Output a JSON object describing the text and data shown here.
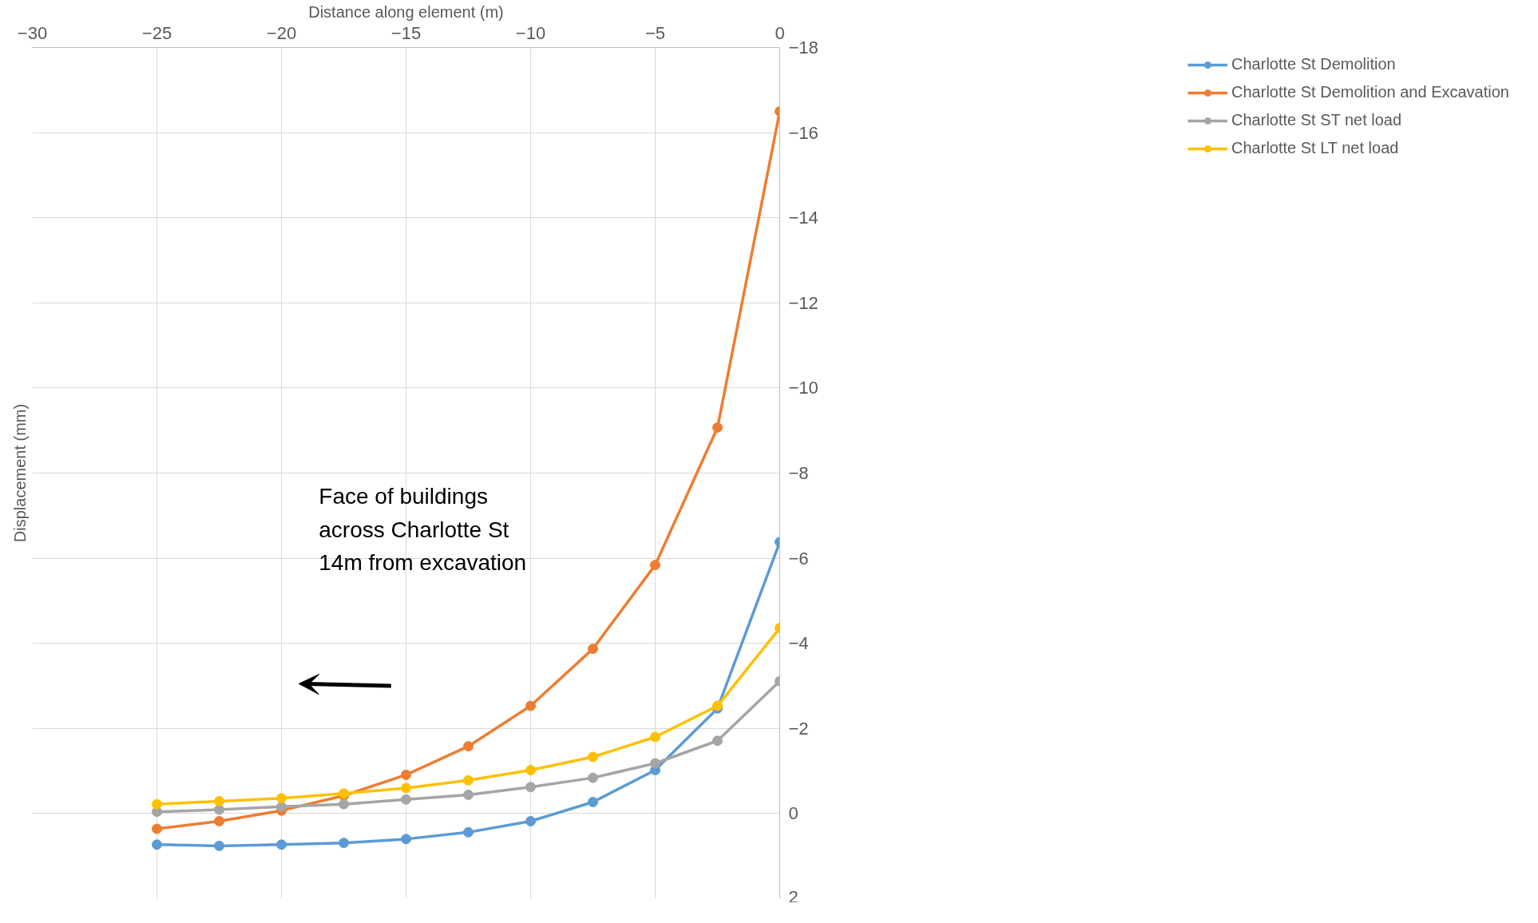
{
  "chart_data": {
    "type": "line",
    "xlabel": "Distance along element (m)",
    "ylabel": "Displacement (mm)",
    "x": [
      -25,
      -22.5,
      -20,
      -17.5,
      -15,
      -12.5,
      -10,
      -7.5,
      -5,
      -2.5,
      0
    ],
    "series": [
      {
        "name": "Charlotte St Demolition",
        "color": "#5b9bd5",
        "values": [
          0.73,
          0.76,
          0.73,
          0.69,
          0.6,
          0.44,
          0.18,
          -0.27,
          -1.02,
          -2.47,
          -6.38
        ]
      },
      {
        "name": "Charlotte St Demolition and Excavation",
        "color": "#ed7d31",
        "values": [
          0.36,
          0.18,
          -0.07,
          -0.42,
          -0.91,
          -1.58,
          -2.53,
          -3.87,
          -5.84,
          -9.07,
          -16.5
        ]
      },
      {
        "name": "Charlotte St ST net load",
        "color": "#a5a5a5",
        "values": [
          -0.04,
          -0.09,
          -0.16,
          -0.22,
          -0.33,
          -0.44,
          -0.62,
          -0.84,
          -1.18,
          -1.71,
          -3.11
        ]
      },
      {
        "name": "Charlotte St LT net load",
        "color": "#ffc000",
        "values": [
          -0.22,
          -0.29,
          -0.36,
          -0.47,
          -0.6,
          -0.78,
          -1.02,
          -1.33,
          -1.8,
          -2.53,
          -4.36
        ]
      }
    ],
    "xlim": [
      -30,
      0
    ],
    "xticks": [
      -30,
      -25,
      -20,
      -15,
      -10,
      -5,
      0
    ],
    "ylim": [
      2,
      -18
    ],
    "yticks": [
      2,
      0,
      -2,
      -4,
      -6,
      -8,
      -10,
      -12,
      -14,
      -16,
      -18
    ],
    "annotations": [
      "Face of buildings\nacross Charlotte St\n14m from excavation"
    ],
    "grid": true,
    "legend": "right",
    "marker": "circle",
    "line_style": "solid"
  }
}
